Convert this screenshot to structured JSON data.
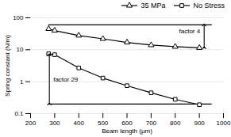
{
  "chart_data": {
    "type": "line",
    "xlabel": "Beam length (μm)",
    "ylabel": "Spring constant (N/m)",
    "xlim": [
      200,
      1000
    ],
    "ylim": [
      0.1,
      100
    ],
    "xticks": [
      200,
      300,
      400,
      500,
      600,
      700,
      800,
      900,
      1000
    ],
    "yticks": [
      0.1,
      1,
      10,
      100
    ],
    "log": "y",
    "grid": "y",
    "legend": "upper right",
    "series": [
      {
        "x": [
          275,
          950
        ],
        "values": [
          60,
          60
        ],
        "color": "#000000"
      },
      {
        "x": [
          275,
          950
        ],
        "values": [
          0.2,
          0.2
        ],
        "color": "#000000"
      },
      {
        "name": "35 MPa",
        "x": [
          275,
          300,
          400,
          500,
          600,
          700,
          800,
          900
        ],
        "values": [
          45,
          40,
          28,
          22,
          17,
          14,
          12.5,
          11.5
        ],
        "color": "#000000",
        "marker": "triangle"
      },
      {
        "name": "No Stress",
        "x": [
          275,
          300,
          400,
          500,
          600,
          700,
          800,
          900
        ],
        "values": [
          7.5,
          7.0,
          2.7,
          1.3,
          0.75,
          0.45,
          0.28,
          0.19
        ],
        "color": "#000000",
        "marker": "square"
      }
    ],
    "annotations": [
      {
        "text": "factor 4",
        "x": 920,
        "y_top": 60,
        "y_bottom": 11.5
      },
      {
        "text": "factor 29",
        "x": 278,
        "y_top": 7.0,
        "y_bottom": 0.2
      }
    ]
  }
}
